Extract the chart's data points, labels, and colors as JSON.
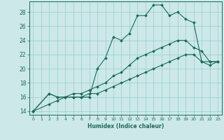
{
  "xlabel": "Humidex (Indice chaleur)",
  "xlim": [
    -0.5,
    23.5
  ],
  "ylim": [
    13.5,
    29.5
  ],
  "yticks": [
    14,
    16,
    18,
    20,
    22,
    24,
    26,
    28
  ],
  "xticks": [
    0,
    1,
    2,
    3,
    4,
    5,
    6,
    7,
    8,
    9,
    10,
    11,
    12,
    13,
    14,
    15,
    16,
    17,
    18,
    19,
    20,
    21,
    22,
    23
  ],
  "bg_color": "#cce8e8",
  "line_color": "#1a6b5a",
  "grid_color": "#99cccc",
  "series": [
    {
      "x": [
        0,
        2,
        3,
        4,
        5,
        6,
        7,
        8,
        9,
        10,
        11,
        12,
        13,
        14,
        15,
        16,
        17,
        18,
        19,
        20,
        21,
        22,
        23
      ],
      "y": [
        14,
        16.5,
        16,
        16,
        16,
        16,
        16,
        20,
        21.5,
        24.5,
        24,
        25,
        27.5,
        27.5,
        29,
        29,
        27.5,
        28,
        27,
        26.5,
        21,
        21,
        21
      ]
    },
    {
      "x": [
        0,
        2,
        3,
        4,
        5,
        6,
        7,
        8,
        9,
        10,
        11,
        12,
        13,
        14,
        15,
        16,
        17,
        18,
        19,
        20,
        21,
        22,
        23
      ],
      "y": [
        14,
        16.5,
        16,
        16,
        16.5,
        16.5,
        17,
        17.5,
        18,
        19,
        19.5,
        20.5,
        21.5,
        22,
        22.5,
        23,
        23.5,
        24,
        24,
        23,
        22.5,
        21,
        21
      ]
    },
    {
      "x": [
        0,
        2,
        3,
        4,
        5,
        6,
        7,
        8,
        9,
        10,
        11,
        12,
        13,
        14,
        15,
        16,
        17,
        18,
        19,
        20,
        21,
        22,
        23
      ],
      "y": [
        14,
        15,
        15.5,
        16,
        16,
        16,
        16.5,
        16.5,
        17,
        17.5,
        18,
        18.5,
        19,
        19.5,
        20,
        20.5,
        21,
        21.5,
        22,
        22,
        21,
        20.5,
        21
      ]
    }
  ]
}
